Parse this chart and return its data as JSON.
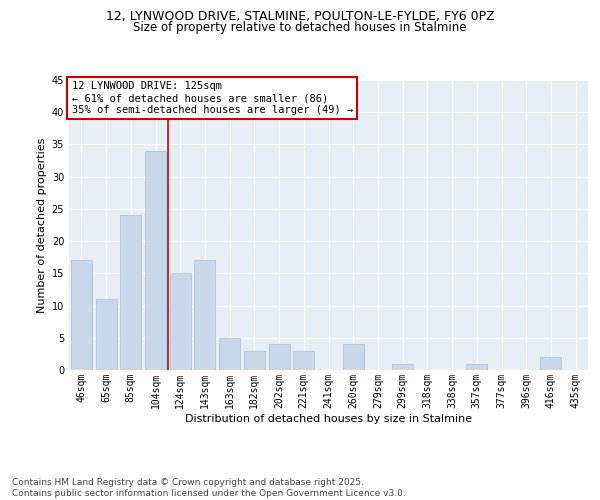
{
  "title1": "12, LYNWOOD DRIVE, STALMINE, POULTON-LE-FYLDE, FY6 0PZ",
  "title2": "Size of property relative to detached houses in Stalmine",
  "xlabel": "Distribution of detached houses by size in Stalmine",
  "ylabel": "Number of detached properties",
  "categories": [
    "46sqm",
    "65sqm",
    "85sqm",
    "104sqm",
    "124sqm",
    "143sqm",
    "163sqm",
    "182sqm",
    "202sqm",
    "221sqm",
    "241sqm",
    "260sqm",
    "279sqm",
    "299sqm",
    "318sqm",
    "338sqm",
    "357sqm",
    "377sqm",
    "396sqm",
    "416sqm",
    "435sqm"
  ],
  "values": [
    17,
    11,
    24,
    34,
    15,
    17,
    5,
    3,
    4,
    3,
    0,
    4,
    0,
    1,
    0,
    0,
    1,
    0,
    0,
    2,
    0
  ],
  "bar_color": "#c8d8ea",
  "bar_edge_color": "#a8c0d4",
  "vline_color": "#cc0000",
  "vline_pos": 3.5,
  "annotation_text": "12 LYNWOOD DRIVE: 125sqm\n← 61% of detached houses are smaller (86)\n35% of semi-detached houses are larger (49) →",
  "annotation_box_color": "#ffffff",
  "annotation_box_edge": "#cc0000",
  "ylim": [
    0,
    45
  ],
  "yticks": [
    0,
    5,
    10,
    15,
    20,
    25,
    30,
    35,
    40,
    45
  ],
  "bg_color": "#e8eef5",
  "footer_text": "Contains HM Land Registry data © Crown copyright and database right 2025.\nContains public sector information licensed under the Open Government Licence v3.0.",
  "title_fontsize": 9,
  "subtitle_fontsize": 8.5,
  "axis_label_fontsize": 8,
  "tick_fontsize": 7,
  "annotation_fontsize": 7.5,
  "footer_fontsize": 6.5
}
